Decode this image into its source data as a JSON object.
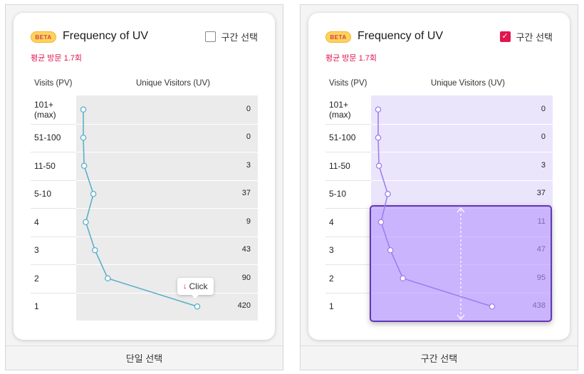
{
  "left": {
    "beta": "BETA",
    "title": "Frequency of UV",
    "range_label": "구간 선택",
    "range_checked": false,
    "average": "평균 방문 1.7회",
    "col_visits": "Visits (PV)",
    "col_uv": "Unique Visitors (UV)",
    "tooltip": "Click",
    "footer": "단일 선택",
    "rows": [
      {
        "label": "101+\n(max)",
        "value": "0"
      },
      {
        "label": "51-100",
        "value": "0"
      },
      {
        "label": "11-50",
        "value": "3"
      },
      {
        "label": "5-10",
        "value": "37"
      },
      {
        "label": "4",
        "value": "9"
      },
      {
        "label": "3",
        "value": "43"
      },
      {
        "label": "2",
        "value": "90"
      },
      {
        "label": "1",
        "value": "420"
      }
    ]
  },
  "right": {
    "beta": "BETA",
    "title": "Frequency of UV",
    "range_label": "구간 선택",
    "range_checked": true,
    "average": "평균 방문 1.7회",
    "col_visits": "Visits (PV)",
    "col_uv": "Unique Visitors (UV)",
    "footer": "구간 선택",
    "selected_range": [
      "4",
      "1"
    ],
    "rows": [
      {
        "label": "101+\n(max)",
        "value": "0"
      },
      {
        "label": "51-100",
        "value": "0"
      },
      {
        "label": "11-50",
        "value": "3"
      },
      {
        "label": "5-10",
        "value": "37"
      },
      {
        "label": "4",
        "value": "11"
      },
      {
        "label": "3",
        "value": "47"
      },
      {
        "label": "2",
        "value": "95"
      },
      {
        "label": "1",
        "value": "438"
      }
    ]
  },
  "chart_data": [
    {
      "type": "line",
      "orientation": "horizontal",
      "categories": [
        "101+ (max)",
        "51-100",
        "11-50",
        "5-10",
        "4",
        "3",
        "2",
        "1"
      ],
      "values": [
        0,
        0,
        3,
        37,
        9,
        43,
        90,
        420
      ],
      "xlabel": "Unique Visitors (UV)",
      "ylabel": "Visits (PV)",
      "color": "#5ab0c8"
    },
    {
      "type": "line",
      "orientation": "horizontal",
      "categories": [
        "101+ (max)",
        "51-100",
        "11-50",
        "5-10",
        "4",
        "3",
        "2",
        "1"
      ],
      "values": [
        0,
        0,
        3,
        37,
        11,
        47,
        95,
        438
      ],
      "xlabel": "Unique Visitors (UV)",
      "ylabel": "Visits (PV)",
      "color": "#9d7ef0",
      "selected_range": [
        "4",
        "1"
      ]
    }
  ],
  "colors": {
    "accent": "#e0164f",
    "line_left": "#5ab0c8",
    "line_right": "#9d7ef0",
    "selection_border": "#6038b5"
  },
  "icons": {
    "checkbox_checked": "check-icon",
    "tooltip_arrow": "arrow-down-icon"
  }
}
